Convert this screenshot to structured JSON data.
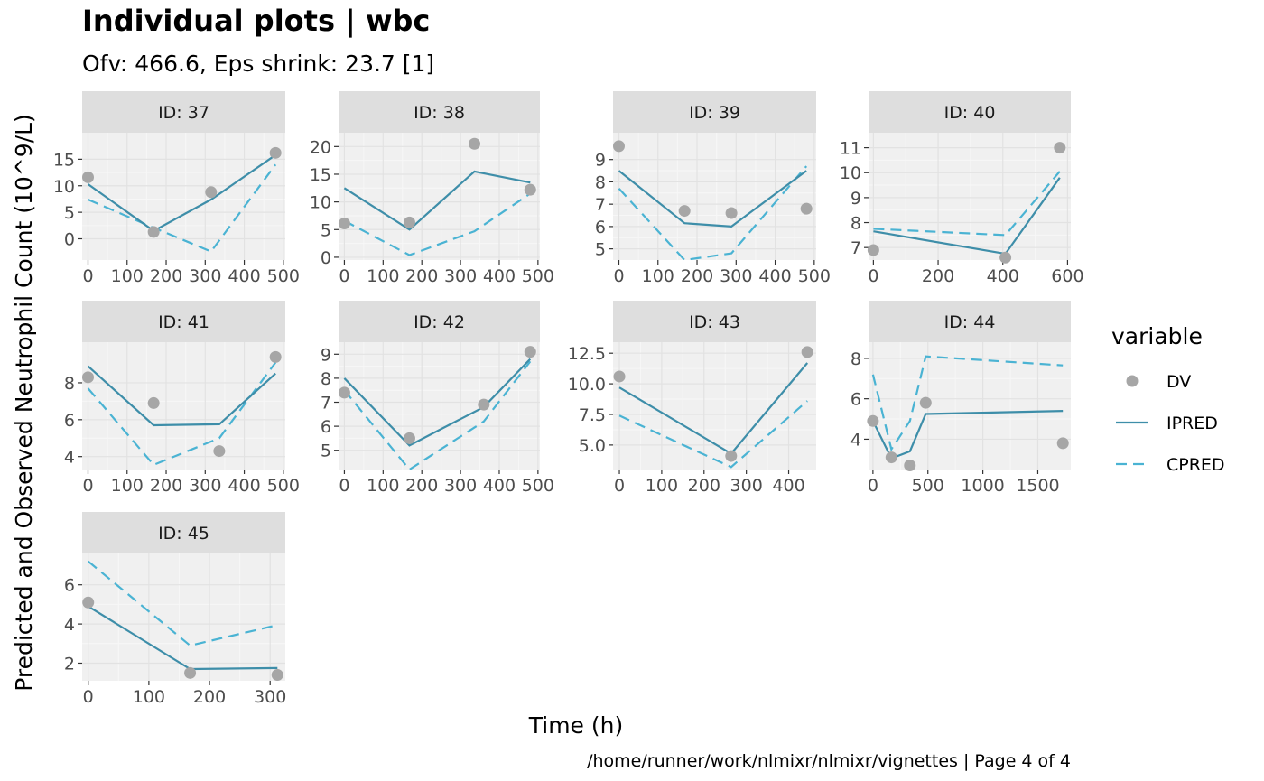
{
  "chart_data": {
    "type": "line",
    "title": "Individual plots | wbc",
    "subtitle": "Ofv: 466.6, Eps shrink: 23.7 [1]",
    "xlabel": "Time (h)",
    "ylabel": "Predicted and Observed Neutrophil Count (10^9/L)",
    "caption": "/home/runner/work/nlmixr/nlmixr/vignettes | Page 4 of 4",
    "legend": {
      "title": "variable",
      "position": "right",
      "entries": [
        {
          "label": "DV",
          "kind": "point",
          "color": "#a6a6a6"
        },
        {
          "label": "IPRED",
          "kind": "solid",
          "color": "#3e8ea9"
        },
        {
          "label": "CPRED",
          "kind": "dashed",
          "color": "#4ab3d3"
        }
      ]
    },
    "colors": {
      "DV": "#a6a6a6",
      "IPRED": "#3e8ea9",
      "CPRED": "#4ab3d3",
      "panel": "#f0f0f0",
      "strip": "#dedede"
    },
    "grid": true,
    "panels": [
      {
        "label": "ID: 37",
        "xlim": [
          -15,
          505
        ],
        "ylim": [
          -4,
          20
        ],
        "xticks": [
          {
            "v": 0,
            "t": "0"
          },
          {
            "v": 100,
            "t": "100"
          },
          {
            "v": 200,
            "t": "200"
          },
          {
            "v": 300,
            "t": "300"
          },
          {
            "v": 400,
            "t": "400"
          },
          {
            "v": 500,
            "t": "500"
          }
        ],
        "yticks": [
          {
            "v": 0,
            "t": "0"
          },
          {
            "v": 5,
            "t": "5"
          },
          {
            "v": 10,
            "t": "10"
          },
          {
            "v": 15,
            "t": "15"
          }
        ],
        "dv": [
          [
            0,
            11.6
          ],
          [
            168,
            1.3
          ],
          [
            315,
            8.8
          ],
          [
            480,
            16.2
          ]
        ],
        "ipred": [
          [
            0,
            10.3
          ],
          [
            168,
            1.5
          ],
          [
            315,
            7.4
          ],
          [
            480,
            15.8
          ]
        ],
        "cpred": [
          [
            0,
            7.4
          ],
          [
            168,
            2.1
          ],
          [
            315,
            -2.4
          ],
          [
            480,
            14.0
          ]
        ]
      },
      {
        "label": "ID: 38",
        "xlim": [
          -15,
          505
        ],
        "ylim": [
          -0.5,
          22.5
        ],
        "xticks": [
          {
            "v": 0,
            "t": "0"
          },
          {
            "v": 100,
            "t": "100"
          },
          {
            "v": 200,
            "t": "200"
          },
          {
            "v": 300,
            "t": "300"
          },
          {
            "v": 400,
            "t": "400"
          },
          {
            "v": 500,
            "t": "500"
          }
        ],
        "yticks": [
          {
            "v": 0,
            "t": "0"
          },
          {
            "v": 5,
            "t": "5"
          },
          {
            "v": 10,
            "t": "10"
          },
          {
            "v": 15,
            "t": "15"
          },
          {
            "v": 20,
            "t": "20"
          }
        ],
        "dv": [
          [
            0,
            6.1
          ],
          [
            168,
            6.3
          ],
          [
            336,
            20.5
          ],
          [
            480,
            12.2
          ]
        ],
        "ipred": [
          [
            0,
            12.5
          ],
          [
            168,
            5.0
          ],
          [
            336,
            15.5
          ],
          [
            480,
            13.5
          ]
        ],
        "cpred": [
          [
            0,
            6.6
          ],
          [
            168,
            0.4
          ],
          [
            336,
            4.7
          ],
          [
            480,
            11.5
          ]
        ]
      },
      {
        "label": "ID: 39",
        "xlim": [
          -15,
          505
        ],
        "ylim": [
          4.5,
          10.2
        ],
        "xticks": [
          {
            "v": 0,
            "t": "0"
          },
          {
            "v": 100,
            "t": "100"
          },
          {
            "v": 200,
            "t": "200"
          },
          {
            "v": 300,
            "t": "300"
          },
          {
            "v": 400,
            "t": "400"
          },
          {
            "v": 500,
            "t": "500"
          }
        ],
        "yticks": [
          {
            "v": 5,
            "t": "5"
          },
          {
            "v": 6,
            "t": "6"
          },
          {
            "v": 7,
            "t": "7"
          },
          {
            "v": 8,
            "t": "8"
          },
          {
            "v": 9,
            "t": "9"
          }
        ],
        "dv": [
          [
            0,
            9.6
          ],
          [
            168,
            6.7
          ],
          [
            288,
            6.6
          ],
          [
            480,
            6.8
          ]
        ],
        "ipred": [
          [
            0,
            8.5
          ],
          [
            168,
            6.15
          ],
          [
            288,
            6.0
          ],
          [
            480,
            8.5
          ]
        ],
        "cpred": [
          [
            0,
            7.7
          ],
          [
            168,
            4.5
          ],
          [
            288,
            4.8
          ],
          [
            480,
            8.7
          ]
        ]
      },
      {
        "label": "ID: 40",
        "xlim": [
          -15,
          610
        ],
        "ylim": [
          6.5,
          11.6
        ],
        "xticks": [
          {
            "v": 0,
            "t": "0"
          },
          {
            "v": 200,
            "t": "200"
          },
          {
            "v": 400,
            "t": "400"
          },
          {
            "v": 600,
            "t": "600"
          }
        ],
        "yticks": [
          {
            "v": 7,
            "t": "7"
          },
          {
            "v": 8,
            "t": "8"
          },
          {
            "v": 9,
            "t": "9"
          },
          {
            "v": 10,
            "t": "10"
          },
          {
            "v": 11,
            "t": "11"
          }
        ],
        "dv": [
          [
            0,
            6.9
          ],
          [
            408,
            6.6
          ],
          [
            576,
            11.0
          ]
        ],
        "ipred": [
          [
            0,
            7.65
          ],
          [
            408,
            6.75
          ],
          [
            576,
            9.8
          ]
        ],
        "cpred": [
          [
            0,
            7.75
          ],
          [
            408,
            7.5
          ],
          [
            576,
            10.05
          ]
        ]
      },
      {
        "label": "ID: 41",
        "xlim": [
          -15,
          505
        ],
        "ylim": [
          3.3,
          10.2
        ],
        "xticks": [
          {
            "v": 0,
            "t": "0"
          },
          {
            "v": 100,
            "t": "100"
          },
          {
            "v": 200,
            "t": "200"
          },
          {
            "v": 300,
            "t": "300"
          },
          {
            "v": 400,
            "t": "400"
          },
          {
            "v": 500,
            "t": "500"
          }
        ],
        "yticks": [
          {
            "v": 4,
            "t": "4"
          },
          {
            "v": 6,
            "t": "6"
          },
          {
            "v": 8,
            "t": "8"
          }
        ],
        "dv": [
          [
            0,
            8.3
          ],
          [
            168,
            6.9
          ],
          [
            336,
            4.3
          ],
          [
            480,
            9.4
          ]
        ],
        "ipred": [
          [
            0,
            8.9
          ],
          [
            168,
            5.7
          ],
          [
            336,
            5.75
          ],
          [
            480,
            8.5
          ]
        ],
        "cpred": [
          [
            0,
            7.7
          ],
          [
            168,
            3.55
          ],
          [
            336,
            5.0
          ],
          [
            480,
            9.1
          ]
        ]
      },
      {
        "label": "ID: 42",
        "xlim": [
          -15,
          505
        ],
        "ylim": [
          4.2,
          9.5
        ],
        "xticks": [
          {
            "v": 0,
            "t": "0"
          },
          {
            "v": 100,
            "t": "100"
          },
          {
            "v": 200,
            "t": "200"
          },
          {
            "v": 300,
            "t": "300"
          },
          {
            "v": 400,
            "t": "400"
          },
          {
            "v": 500,
            "t": "500"
          }
        ],
        "yticks": [
          {
            "v": 5,
            "t": "5"
          },
          {
            "v": 6,
            "t": "6"
          },
          {
            "v": 7,
            "t": "7"
          },
          {
            "v": 8,
            "t": "8"
          },
          {
            "v": 9,
            "t": "9"
          }
        ],
        "dv": [
          [
            0,
            7.4
          ],
          [
            168,
            5.5
          ],
          [
            360,
            6.9
          ],
          [
            480,
            9.1
          ]
        ],
        "ipred": [
          [
            0,
            8.0
          ],
          [
            168,
            5.2
          ],
          [
            360,
            6.8
          ],
          [
            480,
            8.8
          ]
        ],
        "cpred": [
          [
            0,
            7.5
          ],
          [
            168,
            4.2
          ],
          [
            360,
            6.2
          ],
          [
            480,
            8.7
          ]
        ]
      },
      {
        "label": "ID: 43",
        "xlim": [
          -15,
          465
        ],
        "ylim": [
          3.0,
          13.4
        ],
        "xticks": [
          {
            "v": 0,
            "t": "0"
          },
          {
            "v": 100,
            "t": "100"
          },
          {
            "v": 200,
            "t": "200"
          },
          {
            "v": 300,
            "t": "300"
          },
          {
            "v": 400,
            "t": "400"
          }
        ],
        "yticks": [
          {
            "v": 5,
            "t": "5.0"
          },
          {
            "v": 7.5,
            "t": "7.5"
          },
          {
            "v": 10,
            "t": "10.0"
          },
          {
            "v": 12.5,
            "t": "12.5"
          }
        ],
        "dv": [
          [
            0,
            10.6
          ],
          [
            264,
            4.1
          ],
          [
            444,
            12.6
          ]
        ],
        "ipred": [
          [
            0,
            9.7
          ],
          [
            264,
            4.3
          ],
          [
            444,
            11.7
          ]
        ],
        "cpred": [
          [
            0,
            7.4
          ],
          [
            264,
            3.2
          ],
          [
            444,
            8.6
          ]
        ]
      },
      {
        "label": "ID: 44",
        "xlim": [
          -40,
          1800
        ],
        "ylim": [
          2.5,
          8.8
        ],
        "xticks": [
          {
            "v": 0,
            "t": "0"
          },
          {
            "v": 500,
            "t": "500"
          },
          {
            "v": 1000,
            "t": "1000"
          },
          {
            "v": 1500,
            "t": "1500"
          }
        ],
        "yticks": [
          {
            "v": 4,
            "t": "4"
          },
          {
            "v": 6,
            "t": "6"
          },
          {
            "v": 8,
            "t": "8"
          }
        ],
        "dv": [
          [
            0,
            4.9
          ],
          [
            168,
            3.1
          ],
          [
            336,
            2.7
          ],
          [
            480,
            5.8
          ],
          [
            1728,
            3.8
          ]
        ],
        "ipred": [
          [
            0,
            4.9
          ],
          [
            168,
            3.05
          ],
          [
            336,
            3.4
          ],
          [
            480,
            5.25
          ],
          [
            1728,
            5.4
          ]
        ],
        "cpred": [
          [
            0,
            7.2
          ],
          [
            168,
            3.5
          ],
          [
            336,
            4.9
          ],
          [
            480,
            8.1
          ],
          [
            1728,
            7.65
          ]
        ]
      },
      {
        "label": "ID: 45",
        "xlim": [
          -10,
          325
        ],
        "ylim": [
          1.1,
          7.6
        ],
        "xticks": [
          {
            "v": 0,
            "t": "0"
          },
          {
            "v": 100,
            "t": "100"
          },
          {
            "v": 200,
            "t": "200"
          },
          {
            "v": 300,
            "t": "300"
          }
        ],
        "yticks": [
          {
            "v": 2,
            "t": "2"
          },
          {
            "v": 4,
            "t": "4"
          },
          {
            "v": 6,
            "t": "6"
          }
        ],
        "dv": [
          [
            0,
            5.1
          ],
          [
            168,
            1.5
          ],
          [
            312,
            1.4
          ]
        ],
        "ipred": [
          [
            0,
            4.9
          ],
          [
            168,
            1.7
          ],
          [
            312,
            1.75
          ]
        ],
        "cpred": [
          [
            0,
            7.2
          ],
          [
            168,
            2.9
          ],
          [
            312,
            3.95
          ]
        ]
      }
    ]
  }
}
